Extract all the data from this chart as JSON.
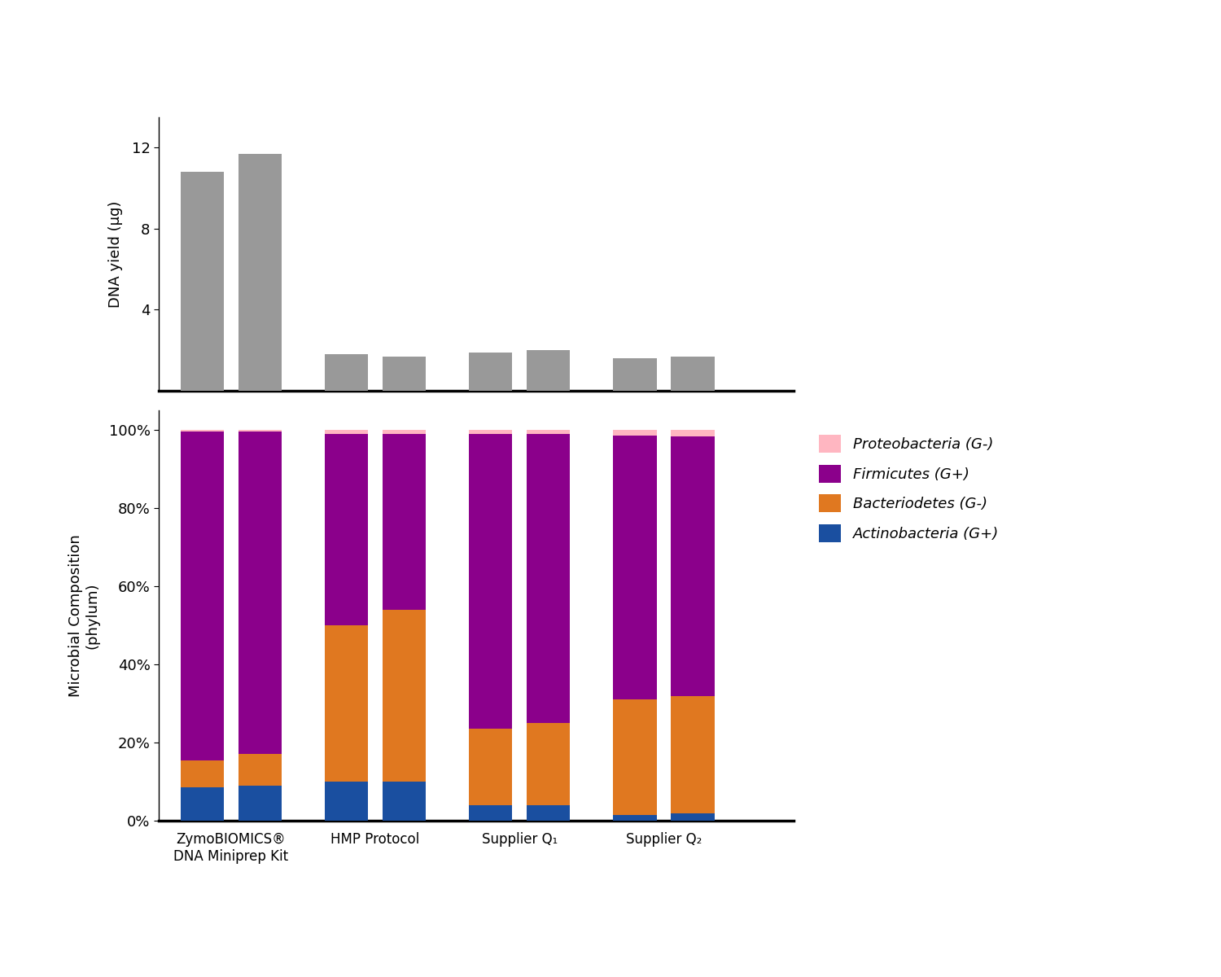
{
  "dna_yield": {
    "values": [
      10.8,
      11.7,
      1.8,
      1.7,
      1.9,
      2.0,
      1.6,
      1.7
    ],
    "bar_color": "#999999",
    "ylabel": "DNA yield (µg)",
    "yticks": [
      4,
      8,
      12
    ],
    "ylim": [
      0,
      13.5
    ]
  },
  "microbial": {
    "actinobacteria": [
      0.085,
      0.09,
      0.1,
      0.1,
      0.04,
      0.04,
      0.015,
      0.018
    ],
    "bacteroidetes": [
      0.07,
      0.08,
      0.4,
      0.44,
      0.195,
      0.21,
      0.295,
      0.3
    ],
    "firmicutes": [
      0.84,
      0.825,
      0.49,
      0.45,
      0.755,
      0.74,
      0.675,
      0.665
    ],
    "proteobacteria": [
      0.005,
      0.005,
      0.01,
      0.01,
      0.01,
      0.01,
      0.015,
      0.017
    ],
    "color_actino": "#1a4fa0",
    "color_bactero": "#e07820",
    "color_firmicutes": "#8B008B",
    "color_proteo": "#ffb6c1",
    "ylabel": "Microbial Composition\n(phylum)",
    "yticks": [
      0.0,
      0.2,
      0.4,
      0.6,
      0.8,
      1.0
    ],
    "ytick_labels": [
      "0%",
      "20%",
      "40%",
      "60%",
      "80%",
      "100%"
    ],
    "ylim": [
      0,
      1.05
    ]
  },
  "group_labels": [
    "ZymoBIOMICS®\nDNA Miniprep Kit",
    "HMP Protocol",
    "Supplier Q₁",
    "Supplier Q₂"
  ],
  "group_centers": [
    1.0,
    3.0,
    5.0,
    7.0
  ],
  "bar_positions": [
    0.6,
    1.4,
    2.6,
    3.4,
    4.6,
    5.4,
    6.6,
    7.4
  ],
  "bar_width": 0.6,
  "background_color": "#ffffff",
  "legend_labels": [
    "Proteobacteria (G-)",
    "Firmicutes (G+)",
    "Bacteriodetes (G-)",
    "Actinobacteria (G+)"
  ]
}
